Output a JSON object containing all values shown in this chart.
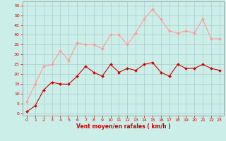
{
  "x": [
    0,
    1,
    2,
    3,
    4,
    5,
    6,
    7,
    8,
    9,
    10,
    11,
    12,
    13,
    14,
    15,
    16,
    17,
    18,
    19,
    20,
    21,
    22,
    23
  ],
  "avg_wind": [
    1,
    4,
    12,
    16,
    15,
    15,
    19,
    24,
    21,
    19,
    25,
    21,
    23,
    22,
    25,
    26,
    21,
    19,
    25,
    23,
    23,
    25,
    23,
    22
  ],
  "gust_wind": [
    6,
    15,
    24,
    25,
    32,
    27,
    36,
    35,
    35,
    33,
    40,
    40,
    35,
    41,
    48,
    53,
    48,
    42,
    41,
    42,
    41,
    48,
    38,
    38
  ],
  "avg_color": "#cc0000",
  "gust_color": "#ff9999",
  "bg_color": "#cceee8",
  "grid_color": "#aacccc",
  "xlabel": "Vent moyen/en rafales ( km/h )",
  "xlabel_color": "#cc0000",
  "tick_color": "#cc0000",
  "spine_color": "#888888",
  "ylim": [
    -1,
    57
  ],
  "yticks": [
    0,
    5,
    10,
    15,
    20,
    25,
    30,
    35,
    40,
    45,
    50,
    55
  ],
  "xticks": [
    0,
    1,
    2,
    3,
    4,
    5,
    6,
    7,
    8,
    9,
    10,
    11,
    12,
    13,
    14,
    15,
    16,
    17,
    18,
    19,
    20,
    21,
    22,
    23
  ]
}
